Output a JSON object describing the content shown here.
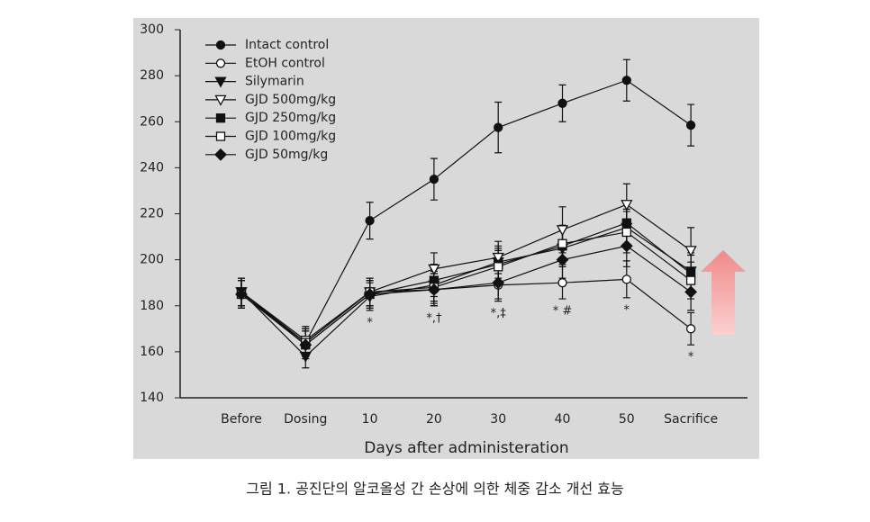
{
  "chart_data": {
    "type": "line",
    "x_label": "Days after administeration",
    "categories": [
      "Before",
      "Dosing",
      "10",
      "20",
      "30",
      "40",
      "50",
      "Sacrifice"
    ],
    "ylim": [
      140,
      300
    ],
    "yticks": [
      140,
      160,
      180,
      200,
      220,
      240,
      260,
      280,
      300
    ],
    "annotations": [
      null,
      null,
      "*",
      "*,†",
      "*,‡",
      "*  #",
      "*",
      "*"
    ],
    "series": [
      {
        "name": "Intact control",
        "color": "#111111",
        "marker": "circle",
        "filled": true,
        "values": [
          186,
          164,
          217,
          235,
          257.5,
          268,
          278,
          258.5
        ],
        "errors": [
          6,
          6,
          8,
          9,
          11,
          8,
          9,
          9
        ]
      },
      {
        "name": "EtOH control",
        "color": "#111111",
        "marker": "circle",
        "filled": false,
        "values": [
          185,
          164,
          186,
          187,
          189,
          190,
          191.5,
          170
        ],
        "errors": [
          6,
          6,
          6,
          7,
          7,
          7,
          8,
          7
        ]
      },
      {
        "name": "Silymarin",
        "color": "#111111",
        "marker": "triangle-down",
        "filled": true,
        "values": [
          186,
          158,
          184,
          189,
          199,
          205,
          214,
          195
        ],
        "errors": [
          6,
          5,
          6,
          7,
          7,
          8,
          8,
          8
        ]
      },
      {
        "name": "GJD 500mg/kg",
        "color": "#111111",
        "marker": "triangle-down",
        "filled": false,
        "values": [
          186,
          165,
          186,
          196,
          201,
          213,
          224,
          204
        ],
        "errors": [
          6,
          6,
          6,
          7,
          7,
          10,
          9,
          10
        ]
      },
      {
        "name": "GJD 250mg/kg",
        "color": "#111111",
        "marker": "square",
        "filled": true,
        "values": [
          186,
          163,
          185,
          191,
          198,
          206,
          216,
          194
        ],
        "errors": [
          6,
          6,
          6,
          7,
          7,
          8,
          9,
          8
        ]
      },
      {
        "name": "GJD 100mg/kg",
        "color": "#111111",
        "marker": "square",
        "filled": false,
        "values": [
          185,
          164,
          186,
          188,
          197,
          207,
          212,
          191
        ],
        "errors": [
          6,
          6,
          6,
          7,
          7,
          8,
          9,
          8
        ]
      },
      {
        "name": "GJD 50mg/kg",
        "color": "#111111",
        "marker": "diamond",
        "filled": true,
        "values": [
          185,
          163,
          185,
          187,
          190,
          200,
          206,
          186
        ],
        "errors": [
          6,
          6,
          6,
          7,
          7,
          8,
          9,
          8
        ]
      }
    ]
  },
  "caption": "그림 1. 공진단의 알코올성 간 손상에 의한 체중 감소 개선 효능"
}
